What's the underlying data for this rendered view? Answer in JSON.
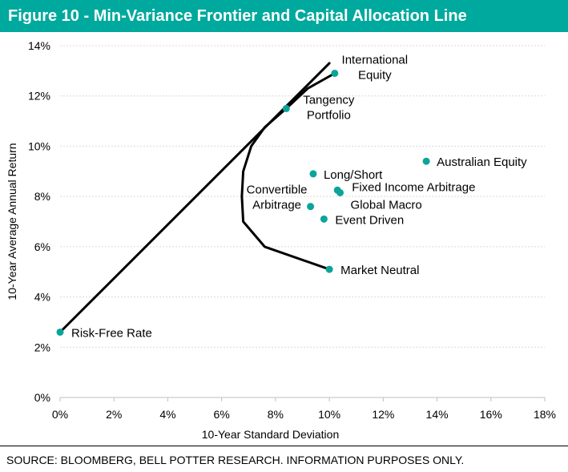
{
  "title": "Figure 10 - Min-Variance Frontier and Capital Allocation Line",
  "source": "SOURCE: BLOOMBERG, BELL POTTER RESEARCH. INFORMATION PURPOSES ONLY.",
  "colors": {
    "accent": "#00a99d",
    "marker": "#0aa49a",
    "line": "#000000",
    "grid": "#d9d9d9"
  },
  "chart_data": {
    "type": "scatter",
    "xlabel": "10-Year Standard Deviation",
    "ylabel": "10-Year Average Annual Return",
    "xlim": [
      0,
      18
    ],
    "ylim": [
      0,
      14
    ],
    "xticks": [
      0,
      2,
      4,
      6,
      8,
      10,
      12,
      14,
      16,
      18
    ],
    "yticks": [
      0,
      2,
      4,
      6,
      8,
      10,
      12,
      14
    ],
    "xtick_labels": [
      "0%",
      "2%",
      "4%",
      "6%",
      "8%",
      "10%",
      "12%",
      "14%",
      "16%",
      "18%"
    ],
    "ytick_labels": [
      "0%",
      "2%",
      "4%",
      "6%",
      "8%",
      "10%",
      "12%",
      "14%"
    ],
    "grid": "horizontal dotted",
    "points": [
      {
        "name": "International Equity",
        "label_lines": [
          "International",
          "Equity"
        ],
        "x": 10.2,
        "y": 12.9
      },
      {
        "name": "Tangency Portfolio",
        "label_lines": [
          "Tangency",
          "Portfolio"
        ],
        "x": 8.4,
        "y": 11.5
      },
      {
        "name": "Australian Equity",
        "label_lines": [
          "Australian Equity"
        ],
        "x": 13.6,
        "y": 9.4
      },
      {
        "name": "Long/Short",
        "label_lines": [
          "Long/Short"
        ],
        "x": 9.4,
        "y": 8.9
      },
      {
        "name": "Fixed Income Arbitrage",
        "label_lines": [
          "Fixed Income Arbitrage"
        ],
        "x": 10.3,
        "y": 8.25
      },
      {
        "name": "Global Macro",
        "label_lines": [
          "Global Macro"
        ],
        "x": 10.4,
        "y": 8.15
      },
      {
        "name": "Convertible Arbitrage",
        "label_lines": [
          "Convertible",
          "Arbitrage"
        ],
        "x": 9.3,
        "y": 7.6
      },
      {
        "name": "Event Driven",
        "label_lines": [
          "Event Driven"
        ],
        "x": 9.8,
        "y": 7.1
      },
      {
        "name": "Market Neutral",
        "label_lines": [
          "Market Neutral"
        ],
        "x": 10.0,
        "y": 5.1
      },
      {
        "name": "Risk-Free Rate",
        "label_lines": [
          "Risk-Free Rate"
        ],
        "x": 0.0,
        "y": 2.6
      }
    ],
    "series": [
      {
        "name": "Capital Allocation Line",
        "x": [
          0.0,
          10.0
        ],
        "y": [
          2.6,
          13.3
        ]
      },
      {
        "name": "Min-Variance Frontier",
        "x": [
          10.0,
          7.6,
          6.8,
          6.75,
          6.8,
          7.1,
          7.6,
          8.4,
          9.2,
          10.2
        ],
        "y": [
          5.1,
          6.0,
          7.0,
          8.0,
          9.0,
          10.0,
          10.75,
          11.5,
          12.3,
          12.9
        ]
      }
    ]
  }
}
